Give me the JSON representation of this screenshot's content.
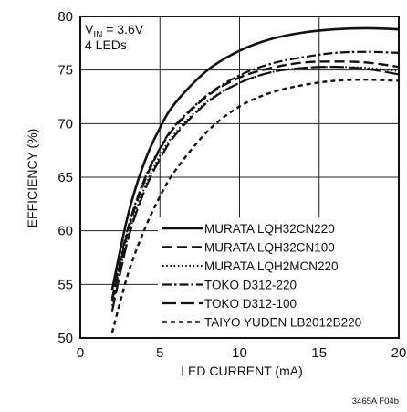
{
  "chart_data": {
    "type": "line",
    "xlabel": "LED CURRENT (mA)",
    "ylabel": "EFFICIENCY (%)",
    "xlim": [
      0,
      20
    ],
    "ylim": [
      50,
      80
    ],
    "x_ticks": [
      "0",
      "5",
      "10",
      "15",
      "20"
    ],
    "y_ticks": [
      "50",
      "55",
      "60",
      "65",
      "70",
      "75",
      "80"
    ],
    "grid": true,
    "legend_position": "bottom-right",
    "annotation": {
      "vin_prefix": "V",
      "vin_sub": "IN",
      "vin_value": " = 3.6V",
      "leds": "4 LEDs"
    },
    "series": [
      {
        "name": "MURATA LQH32CN220",
        "style": "solid",
        "x": [
          2,
          3,
          4,
          5,
          6,
          8,
          10,
          12,
          14,
          16,
          18,
          20
        ],
        "y": [
          54.5,
          61.5,
          66.3,
          69.6,
          72.0,
          75.0,
          76.8,
          77.9,
          78.5,
          78.8,
          78.9,
          78.8
        ]
      },
      {
        "name": "MURATA LQH32CN100",
        "style": "long-dash",
        "x": [
          2,
          3,
          4,
          5,
          6,
          8,
          10,
          12,
          14,
          16,
          18,
          20
        ],
        "y": [
          53.5,
          60.0,
          64.5,
          67.6,
          69.8,
          72.6,
          74.3,
          75.2,
          75.7,
          75.8,
          75.7,
          75.3
        ]
      },
      {
        "name": "MURATA LQH2MCN220",
        "style": "dotted",
        "x": [
          2,
          3,
          4,
          5,
          6,
          8,
          10,
          12,
          14,
          16,
          18,
          20
        ],
        "y": [
          53.0,
          59.5,
          63.9,
          67.0,
          69.2,
          72.1,
          73.8,
          74.8,
          75.2,
          75.3,
          75.2,
          74.9
        ]
      },
      {
        "name": "TOKO D312-220",
        "style": "dash-dot",
        "x": [
          2,
          3,
          4,
          5,
          6,
          8,
          10,
          12,
          14,
          16,
          18,
          20
        ],
        "y": [
          53.7,
          60.3,
          64.7,
          67.7,
          69.9,
          72.7,
          74.5,
          75.6,
          76.2,
          76.6,
          76.7,
          76.6
        ]
      },
      {
        "name": "TOKO D312-100",
        "style": "dash",
        "x": [
          2,
          3,
          4,
          5,
          6,
          8,
          10,
          12,
          14,
          16,
          18,
          20
        ],
        "y": [
          52.5,
          59.2,
          63.6,
          66.7,
          69.0,
          72.0,
          73.8,
          74.8,
          75.2,
          75.3,
          75.1,
          74.6
        ]
      },
      {
        "name": "TAIYO YUDEN LB2012B220",
        "style": "short-dash",
        "x": [
          2,
          3,
          4,
          5,
          6,
          8,
          10,
          12,
          14,
          16,
          18,
          20
        ],
        "y": [
          50.5,
          56.0,
          60.0,
          63.2,
          65.7,
          69.3,
          71.6,
          72.9,
          73.6,
          74.0,
          74.1,
          74.0
        ]
      }
    ]
  },
  "figure_id": "3465A F04b",
  "colors": {
    "ink": "#111111",
    "grid": "#222222",
    "background": "#ffffff"
  }
}
